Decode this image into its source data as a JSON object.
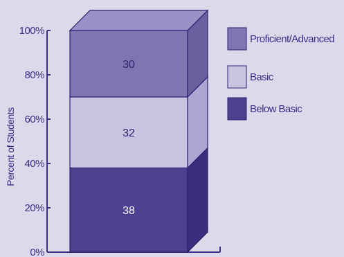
{
  "chart_data": {
    "type": "bar",
    "stacked": true,
    "three_d": true,
    "ylabel": "Percent of Students",
    "ylim": [
      0,
      100
    ],
    "yticks": [
      "0%",
      "20%",
      "40%",
      "60%",
      "80%",
      "100%"
    ],
    "series": [
      {
        "name": "Below Basic",
        "values": [
          38
        ],
        "color": "#4f3f8f",
        "side_color": "#3a2d7b"
      },
      {
        "name": "Basic",
        "values": [
          32
        ],
        "color": "#c9c4e2",
        "side_color": "#aea6d2"
      },
      {
        "name": "Proficient/Advanced",
        "values": [
          30
        ],
        "color": "#8075b1",
        "side_color": "#6b609f"
      }
    ],
    "top_color": "#9a91c6",
    "legend": {
      "placement": "right",
      "order": [
        "Proficient/Advanced",
        "Basic",
        "Below Basic"
      ]
    }
  }
}
